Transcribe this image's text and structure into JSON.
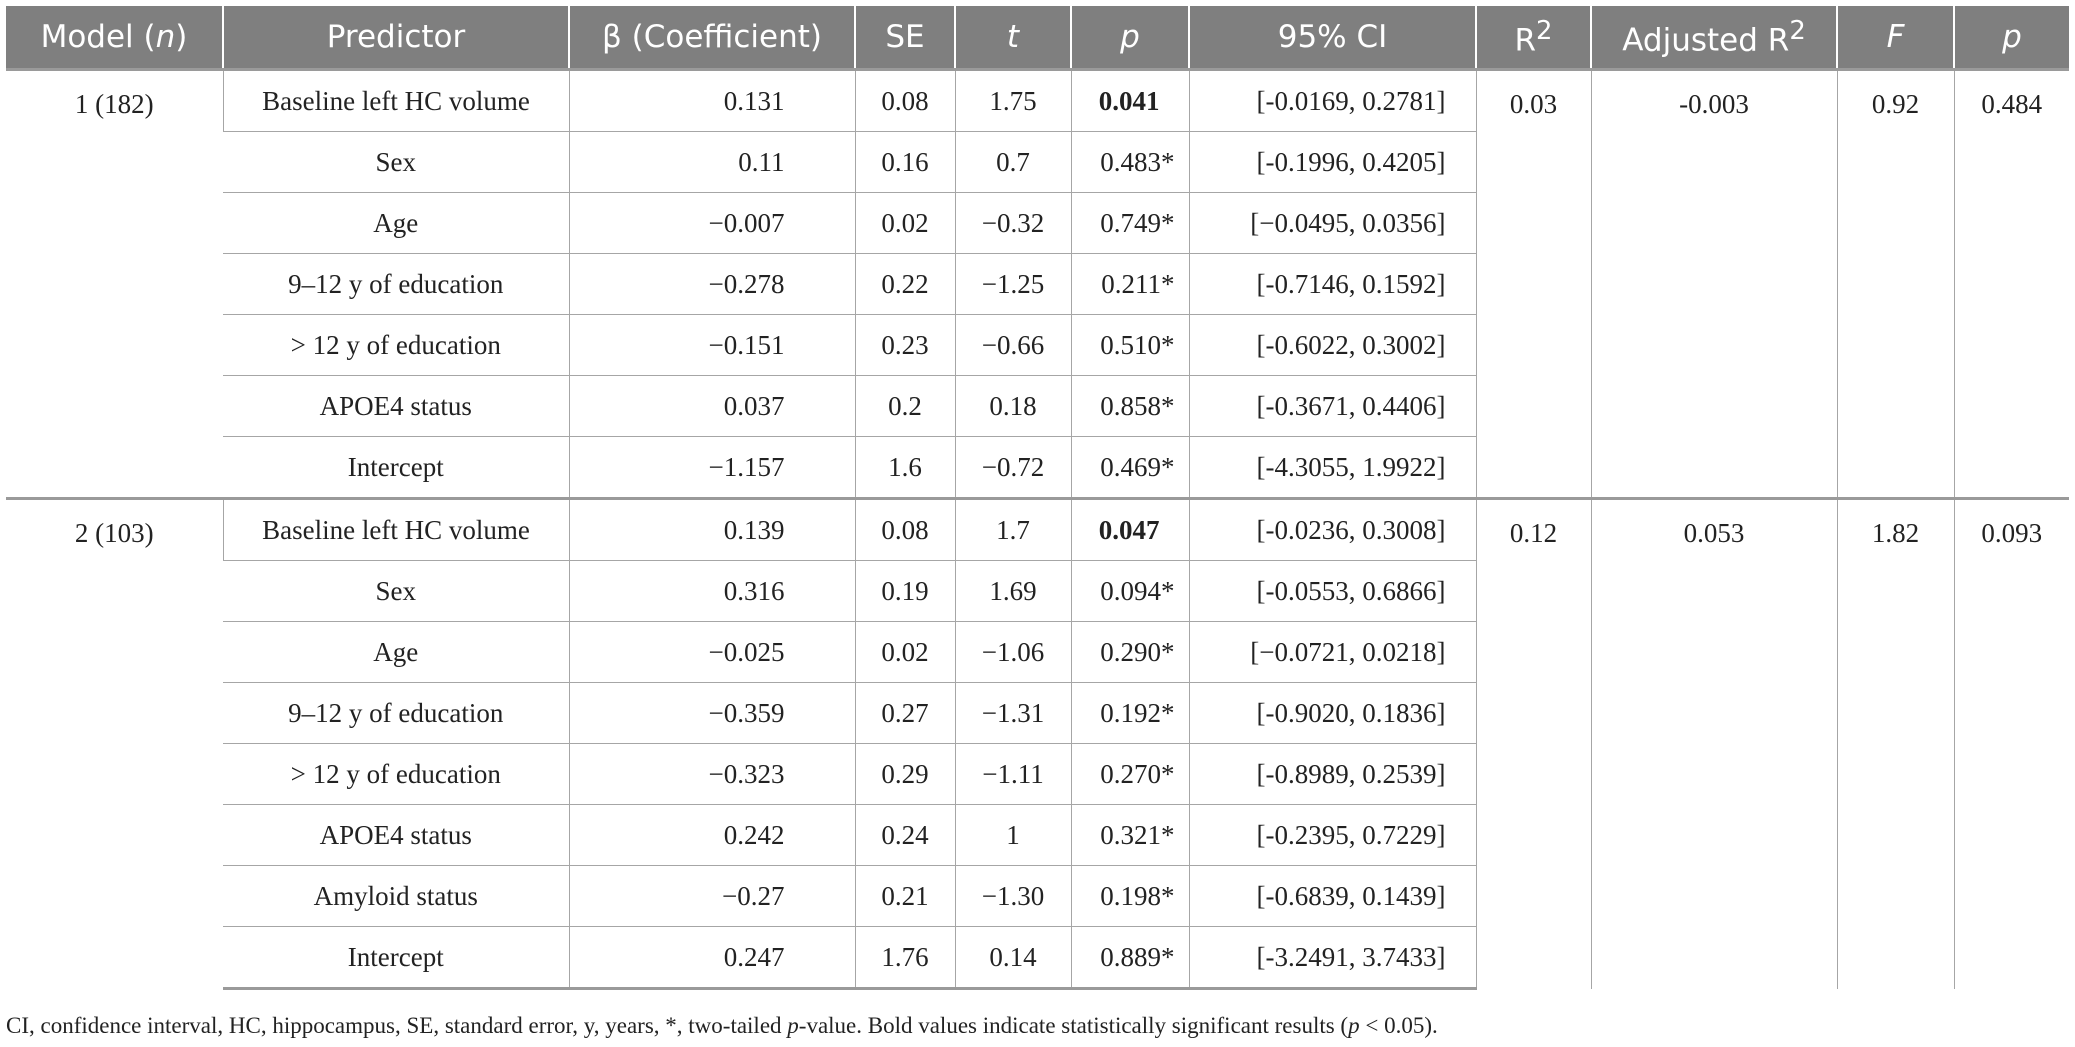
{
  "columns": [
    {
      "text": "Model (",
      "it": "n",
      "after": ")"
    },
    {
      "text": "Predictor"
    },
    {
      "text": "β (Coefficient)"
    },
    {
      "text": "SE"
    },
    {
      "it": "t"
    },
    {
      "it": "p"
    },
    {
      "text": "95% CI"
    },
    {
      "text": "R",
      "sup": "2"
    },
    {
      "text": "Adjusted R",
      "sup": "2"
    },
    {
      "it": "F"
    },
    {
      "it": "p"
    }
  ],
  "models": [
    {
      "label": "1 (182)",
      "r2": "0.03",
      "adj_r2": "-0.003",
      "f": "0.92",
      "p": "0.484",
      "rows": [
        {
          "predictor": "Baseline left HC volume",
          "beta": "0.131",
          "se": "0.08",
          "t": "1.75",
          "p": "0.041",
          "sig": true,
          "ci": "[-0.0169, 0.2781]"
        },
        {
          "predictor": "Sex",
          "beta": "0.11",
          "se": "0.16",
          "t": "0.7",
          "p": "0.483*",
          "ci": "[-0.1996, 0.4205]"
        },
        {
          "predictor": "Age",
          "beta": "−0.007",
          "se": "0.02",
          "t": "−0.32",
          "p": "0.749*",
          "ci": "[−0.0495, 0.0356]"
        },
        {
          "predictor": "9–12 y of education",
          "beta": "−0.278",
          "se": "0.22",
          "t": "−1.25",
          "p": "0.211*",
          "ci": "[-0.7146, 0.1592]"
        },
        {
          "predictor": "> 12 y of education",
          "beta": "−0.151",
          "se": "0.23",
          "t": "−0.66",
          "p": "0.510*",
          "ci": "[-0.6022, 0.3002]"
        },
        {
          "predictor": "APOE4 status",
          "beta": "0.037",
          "se": "0.2",
          "t": "0.18",
          "p": "0.858*",
          "ci": "[-0.3671, 0.4406]"
        },
        {
          "predictor": "Intercept",
          "beta": "−1.157",
          "se": "1.6",
          "t": "−0.72",
          "p": "0.469*",
          "ci": "[-4.3055, 1.9922]"
        }
      ]
    },
    {
      "label": "2 (103)",
      "r2": "0.12",
      "adj_r2": "0.053",
      "f": "1.82",
      "p": "0.093",
      "rows": [
        {
          "predictor": "Baseline left HC volume",
          "beta": "0.139",
          "se": "0.08",
          "t": "1.7",
          "p": "0.047",
          "sig": true,
          "ci": "[-0.0236, 0.3008]"
        },
        {
          "predictor": "Sex",
          "beta": "0.316",
          "se": "0.19",
          "t": "1.69",
          "p": "0.094*",
          "ci": "[-0.0553, 0.6866]"
        },
        {
          "predictor": "Age",
          "beta": "−0.025",
          "se": "0.02",
          "t": "−1.06",
          "p": "0.290*",
          "ci": "[−0.0721, 0.0218]"
        },
        {
          "predictor": "9–12 y of education",
          "beta": "−0.359",
          "se": "0.27",
          "t": "−1.31",
          "p": "0.192*",
          "ci": "[-0.9020, 0.1836]"
        },
        {
          "predictor": "> 12 y of education",
          "beta": "−0.323",
          "se": "0.29",
          "t": "−1.11",
          "p": "0.270*",
          "ci": "[-0.8989, 0.2539]"
        },
        {
          "predictor": "APOE4 status",
          "beta": "0.242",
          "se": "0.24",
          "t": "1",
          "p": "0.321*",
          "ci": "[-0.2395, 0.7229]"
        },
        {
          "predictor": "Amyloid status",
          "beta": "−0.27",
          "se": "0.21",
          "t": "−1.30",
          "p": "0.198*",
          "ci": "[-0.6839, 0.1439]"
        },
        {
          "predictor": "Intercept",
          "beta": "0.247",
          "se": "1.76",
          "t": "0.14",
          "p": "0.889*",
          "ci": "[-3.2491, 3.7433]"
        }
      ]
    }
  ],
  "footnote": {
    "part1": "CI, confidence interval, HC, hippocampus, SE, standard error, y, years, *, two-tailed ",
    "p_italic": "p",
    "part2": "-value. Bold values indicate statistically significant results (",
    "p2_italic": "p",
    "part3": " < 0.05)."
  }
}
